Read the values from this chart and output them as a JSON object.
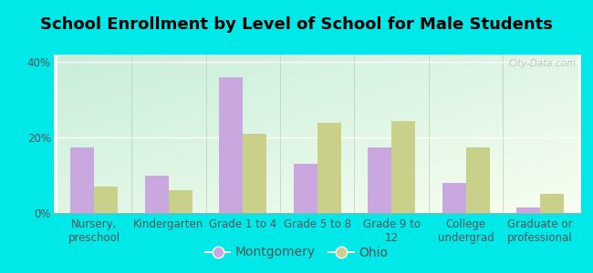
{
  "title": "School Enrollment by Level of School for Male Students",
  "categories": [
    "Nursery,\npreschool",
    "Kindergarten",
    "Grade 1 to 4",
    "Grade 5 to 8",
    "Grade 9 to\n12",
    "College\nundergrad",
    "Graduate or\nprofessional"
  ],
  "montgomery": [
    17.5,
    10.0,
    36.0,
    13.0,
    17.5,
    8.0,
    1.5
  ],
  "ohio": [
    7.0,
    6.0,
    21.0,
    24.0,
    24.5,
    17.5,
    5.0
  ],
  "montgomery_color": "#c9a8e0",
  "ohio_color": "#c8d08a",
  "background_outer": "#00e8e8",
  "background_inner_tl": "#c8eeda",
  "background_inner_br": "#f8fef0",
  "ylim": [
    0,
    42
  ],
  "yticks": [
    0,
    20,
    40
  ],
  "ytick_labels": [
    "0%",
    "20%",
    "40%"
  ],
  "bar_width": 0.32,
  "legend_labels": [
    "Montgomery",
    "Ohio"
  ],
  "watermark": "City-Data.com",
  "title_fontsize": 13,
  "tick_fontsize": 8.5,
  "legend_fontsize": 10
}
